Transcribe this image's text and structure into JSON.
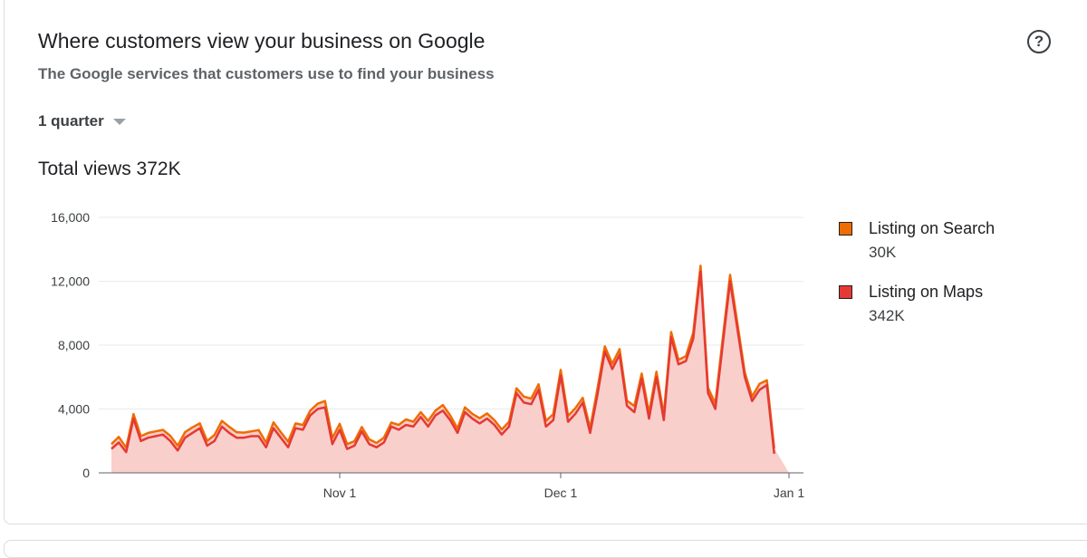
{
  "card": {
    "title": "Where customers view your business on Google",
    "subtitle": "The Google services that customers use to find your business",
    "help_icon": "help-circle-icon",
    "help_glyph": "?",
    "period_select": "1 quarter",
    "caret_icon": "caret-down-icon",
    "total_views": "Total views 372K"
  },
  "chart_data": {
    "type": "area",
    "ylim": [
      0,
      16000
    ],
    "yticks": [
      0,
      4000,
      8000,
      12000,
      16000
    ],
    "ytick_labels": [
      "0",
      "4,000",
      "8,000",
      "12,000",
      "16,000"
    ],
    "xtick_labels": [
      "Nov 1",
      "Dec 1",
      "Jan 1"
    ],
    "xtick_days": [
      31,
      61,
      92
    ],
    "grid": true,
    "legend_position": "right",
    "series": [
      {
        "name": "Listing on Search",
        "total": "30K",
        "color": "#ef6c00",
        "values": [
          300,
          350,
          270,
          280,
          300,
          300,
          300,
          290,
          320,
          300,
          350,
          350,
          300,
          300,
          380,
          350,
          380,
          350,
          320,
          300,
          380,
          300,
          360,
          350,
          350,
          300,
          300,
          300,
          330,
          400,
          380,
          370,
          300,
          280,
          270,
          300,
          270,
          300,
          250,
          300,
          350,
          300,
          300,
          350,
          300,
          350,
          300,
          280,
          300,
          300,
          320,
          320,
          300,
          320,
          300,
          300,
          380,
          350,
          350,
          350,
          380,
          350,
          370,
          350,
          300,
          300,
          380,
          320,
          330,
          350,
          320,
          380,
          320,
          350,
          330,
          350,
          320,
          280,
          300,
          380,
          370,
          320,
          350,
          380,
          400,
          350,
          300,
          280,
          380,
          300,
          350,
          380,
          200
        ]
      },
      {
        "name": "Listing on Maps",
        "total": "342K",
        "color": "#e53935",
        "values": [
          1500,
          1900,
          1300,
          3400,
          2000,
          2200,
          2300,
          2400,
          2000,
          1400,
          2200,
          2500,
          2800,
          1700,
          2000,
          2900,
          2500,
          2200,
          2200,
          2300,
          2300,
          1600,
          2800,
          2200,
          1600,
          2800,
          2700,
          3600,
          4000,
          4100,
          1800,
          2700,
          1500,
          1700,
          2600,
          1800,
          1600,
          1900,
          2900,
          2700,
          3000,
          2900,
          3500,
          2900,
          3600,
          3900,
          3300,
          2500,
          3800,
          3400,
          3100,
          3400,
          3000,
          2400,
          2900,
          5000,
          4400,
          4300,
          5200,
          2900,
          3300,
          6100,
          3200,
          3700,
          4400,
          2500,
          4900,
          7600,
          6500,
          7400,
          4200,
          3800,
          5900,
          3400,
          6000,
          3300,
          8500,
          6800,
          7000,
          8400,
          12600,
          5000,
          4000,
          8000,
          12000,
          9000,
          6000,
          4500,
          5200,
          5500,
          1200
        ]
      }
    ]
  }
}
